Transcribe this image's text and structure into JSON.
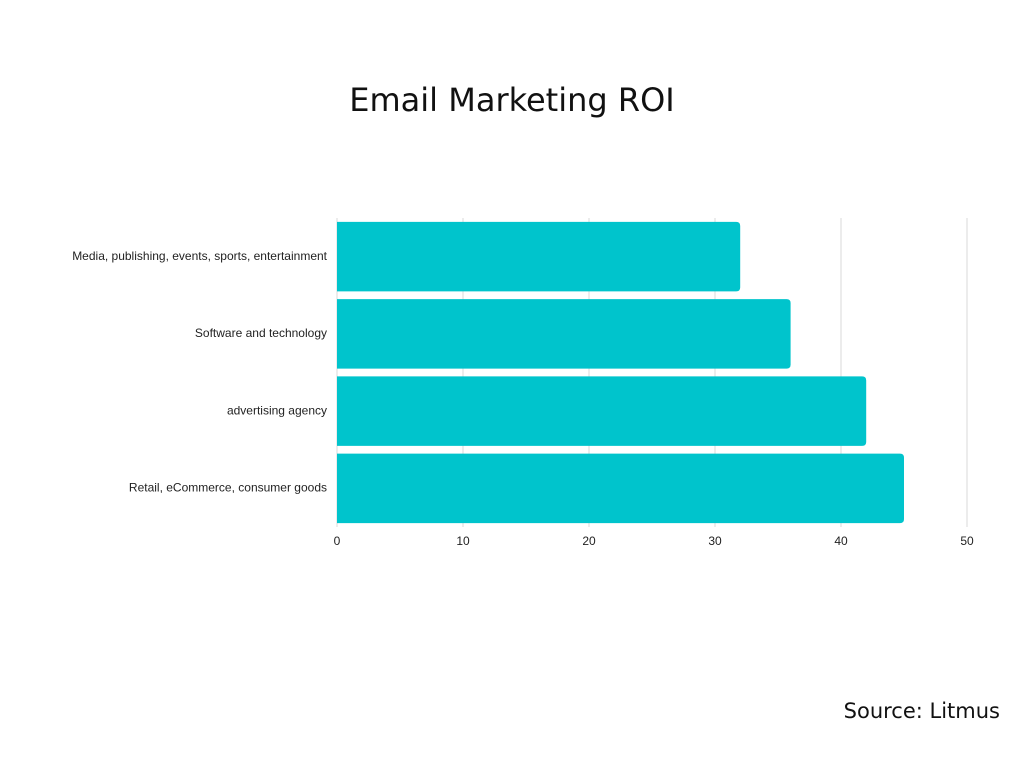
{
  "chart_data": {
    "type": "bar",
    "orientation": "horizontal",
    "title": "Email Marketing ROI",
    "categories": [
      "Media, publishing, events, sports, entertainment",
      "Software and technology",
      "advertising agency",
      "Retail, eCommerce, consumer goods"
    ],
    "values": [
      32,
      36,
      42,
      45
    ],
    "color": "#00c4cc",
    "xlim": [
      0,
      50
    ],
    "xticks": [
      0,
      10,
      20,
      30,
      40,
      50
    ],
    "grid": true,
    "source": "Source: Litmus"
  }
}
